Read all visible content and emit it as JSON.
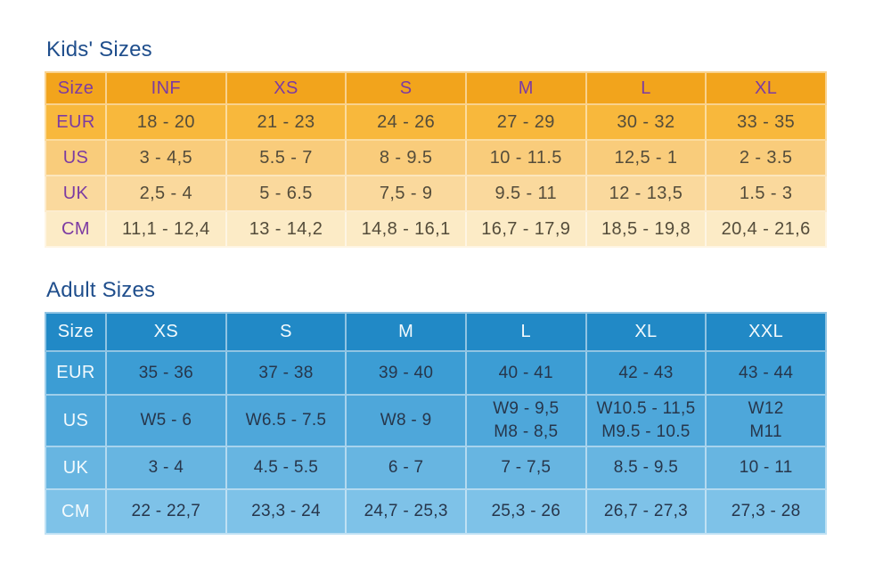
{
  "colors": {
    "title-color": "#1F4E8C",
    "grid-line": "rgba(255,255,255,0.5)",
    "kids-header-bg": "#F2A41C",
    "kids-header-text": "#7C3BA2",
    "kids-data-text": "#544C3A",
    "kids-row-eur-bg": "#F8B83C",
    "kids-row-us-bg": "#F9CC7B",
    "kids-row-uk-bg": "#FAD99D",
    "kids-row-cm-bg": "#FCEBC6",
    "adult-header-bg": "#2189C6",
    "adult-header-text": "#F3FAFD",
    "adult-data-text": "#27364B",
    "adult-row-eur-bg": "#3C9DD4",
    "adult-row-us-bg": "#4EA7DA",
    "adult-row-uk-bg": "#67B5E1",
    "adult-row-cm-bg": "#7EC2E8"
  },
  "chart_data": [
    {
      "type": "table",
      "title": "Kids' Sizes",
      "corner_label": "Size",
      "columns": [
        "INF",
        "XS",
        "S",
        "M",
        "L",
        "XL"
      ],
      "rows": [
        {
          "label": "EUR",
          "cells": [
            "18 - 20",
            "21 - 23",
            "24 - 26",
            "27 - 29",
            "30 - 32",
            "33 - 35"
          ]
        },
        {
          "label": "US",
          "cells": [
            "3 - 4,5",
            "5.5 - 7",
            "8 - 9.5",
            "10 - 11.5",
            "12,5 - 1",
            "2 - 3.5"
          ]
        },
        {
          "label": "UK",
          "cells": [
            "2,5 - 4",
            "5 - 6.5",
            "7,5 - 9",
            "9.5 - 11",
            "12 - 13,5",
            "1.5 - 3"
          ]
        },
        {
          "label": "CM",
          "cells": [
            "11,1 - 12,4",
            "13 - 14,2",
            "14,8 - 16,1",
            "16,7 - 17,9",
            "18,5 - 19,8",
            "20,4 - 21,6"
          ]
        }
      ]
    },
    {
      "type": "table",
      "title": "Adult Sizes",
      "corner_label": "Size",
      "columns": [
        "XS",
        "S",
        "M",
        "L",
        "XL",
        "XXL"
      ],
      "rows": [
        {
          "label": "EUR",
          "cells": [
            "35 - 36",
            "37 - 38",
            "39 - 40",
            "40 - 41",
            "42 - 43",
            "43 - 44"
          ]
        },
        {
          "label": "US",
          "cells": [
            "W5 - 6",
            "W6.5 - 7.5",
            "W8 - 9",
            "W9 - 9,5\nM8 - 8,5",
            "W10.5 - 11,5\nM9.5 - 10.5",
            "W12\nM11"
          ]
        },
        {
          "label": "UK",
          "cells": [
            "3 - 4",
            "4.5 - 5.5",
            "6 - 7",
            "7 - 7,5",
            "8.5 - 9.5",
            "10 - 11"
          ]
        },
        {
          "label": "CM",
          "cells": [
            "22 - 22,7",
            "23,3 - 24",
            "24,7 - 25,3",
            "25,3 - 26",
            "26,7 - 27,3",
            "27,3 - 28"
          ]
        }
      ]
    }
  ]
}
